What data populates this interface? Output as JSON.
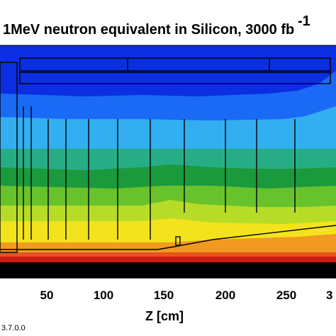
{
  "chart_data": {
    "type": "heatmap",
    "title": "1MeV neutron equivalent in Silicon, 3000 fb",
    "title_superscript": "-1",
    "xlabel": "Z [cm]",
    "ylabel": "",
    "x_ticks": [
      "50",
      "100",
      "150",
      "200",
      "250",
      "3"
    ],
    "footer_text": "3.7.0.0",
    "colors": {
      "dark_blue": "#0b2fe0",
      "blue": "#1a6af5",
      "light_blue": "#33aef0",
      "teal": "#27ad86",
      "dark_green": "#1a9a3c",
      "green": "#67c22c",
      "yellow_green": "#b7dc28",
      "yellow": "#f3e31c",
      "orange": "#f19a1f",
      "dark_orange": "#e55518",
      "red": "#cf1d16",
      "black": "#000000"
    }
  }
}
